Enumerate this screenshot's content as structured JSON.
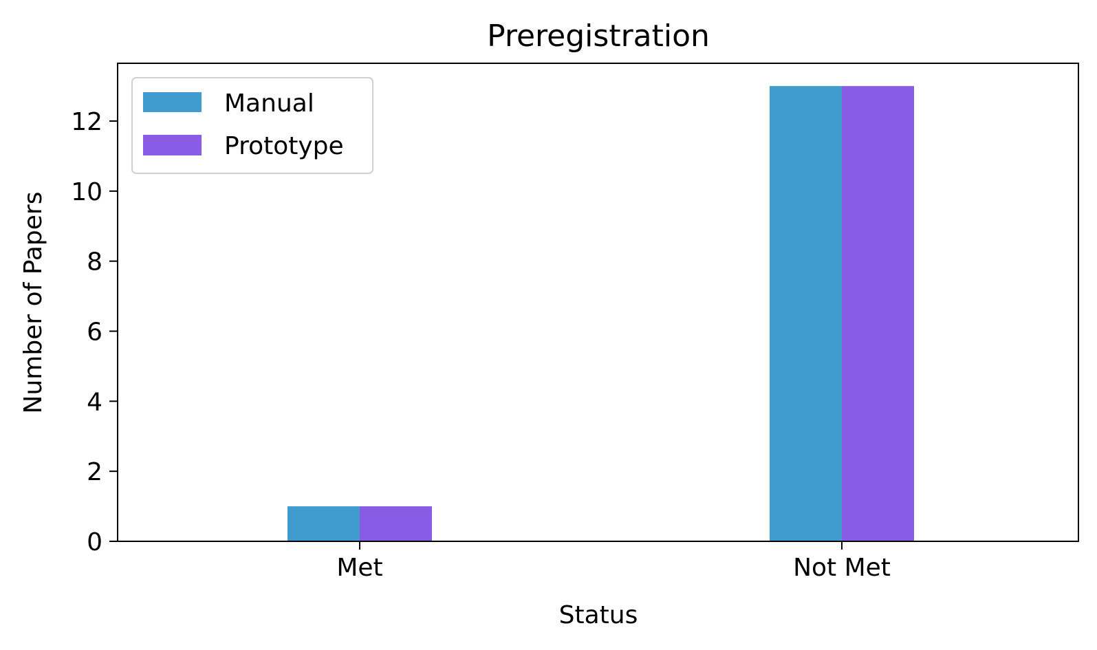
{
  "chart_data": {
    "type": "bar",
    "title": "Preregistration",
    "xlabel": "Status",
    "ylabel": "Number of Papers",
    "categories": [
      "Met",
      "Not Met"
    ],
    "series": [
      {
        "name": "Manual",
        "values": [
          1,
          13
        ],
        "color": "#409ccf"
      },
      {
        "name": "Prototype",
        "values": [
          1,
          13
        ],
        "color": "#8a5ce6"
      }
    ],
    "ylim": [
      0,
      13.65
    ],
    "yticks": [
      0,
      2,
      4,
      6,
      8,
      10,
      12
    ],
    "grid": false,
    "legend": {
      "position": "top-left"
    }
  }
}
